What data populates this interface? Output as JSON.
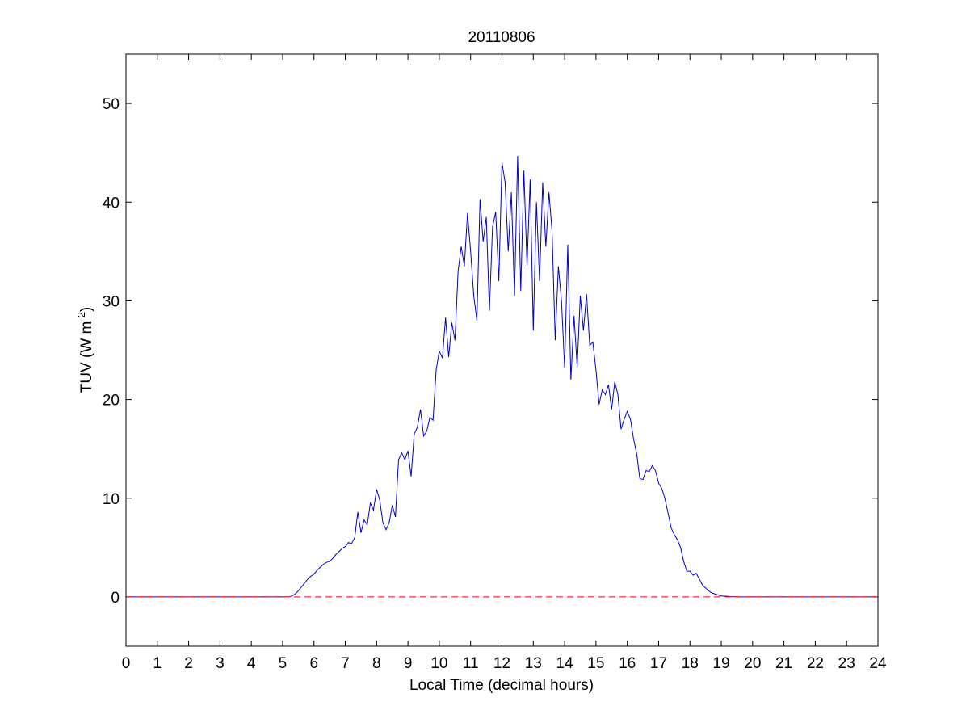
{
  "chart_data": {
    "type": "line",
    "title": "20110806",
    "xlabel": "Local Time (decimal hours)",
    "ylabel": [
      "TUV (W m",
      "-2",
      ")"
    ],
    "xlim": [
      0,
      24
    ],
    "xticks": [
      0,
      1,
      2,
      3,
      4,
      5,
      6,
      7,
      8,
      9,
      10,
      11,
      12,
      13,
      14,
      15,
      16,
      17,
      18,
      19,
      20,
      21,
      22,
      23,
      24
    ],
    "ylim": [
      -5,
      55
    ],
    "yticks": [
      0,
      10,
      20,
      30,
      40,
      50
    ],
    "grid": false,
    "reference_line": {
      "value": 0,
      "color": "#ff0000",
      "style": "dashed"
    },
    "x": [
      0,
      5.2,
      5.3,
      5.4,
      5.5,
      5.6,
      5.7,
      5.8,
      5.9,
      6.0,
      6.1,
      6.2,
      6.3,
      6.4,
      6.5,
      6.6,
      6.7,
      6.8,
      6.9,
      7.0,
      7.1,
      7.2,
      7.3,
      7.4,
      7.5,
      7.6,
      7.7,
      7.8,
      7.9,
      8.0,
      8.1,
      8.2,
      8.3,
      8.4,
      8.5,
      8.6,
      8.7,
      8.8,
      8.9,
      9.0,
      9.1,
      9.2,
      9.3,
      9.4,
      9.5,
      9.6,
      9.7,
      9.8,
      9.9,
      10.0,
      10.1,
      10.2,
      10.3,
      10.4,
      10.5,
      10.6,
      10.7,
      10.8,
      10.9,
      11.0,
      11.1,
      11.2,
      11.3,
      11.4,
      11.5,
      11.6,
      11.7,
      11.8,
      11.9,
      12.0,
      12.1,
      12.2,
      12.3,
      12.4,
      12.5,
      12.6,
      12.7,
      12.8,
      12.9,
      13.0,
      13.1,
      13.2,
      13.3,
      13.4,
      13.5,
      13.6,
      13.7,
      13.8,
      13.9,
      14.0,
      14.1,
      14.2,
      14.3,
      14.4,
      14.5,
      14.6,
      14.7,
      14.8,
      14.9,
      15.0,
      15.1,
      15.2,
      15.3,
      15.4,
      15.5,
      15.6,
      15.7,
      15.8,
      15.9,
      16.0,
      16.1,
      16.2,
      16.3,
      16.4,
      16.5,
      16.6,
      16.7,
      16.8,
      16.9,
      17.0,
      17.1,
      17.2,
      17.3,
      17.4,
      17.5,
      17.6,
      17.7,
      17.8,
      17.9,
      18.0,
      18.1,
      18.2,
      18.3,
      18.4,
      18.5,
      18.6,
      18.7,
      18.8,
      18.9,
      19.0,
      19.1,
      19.2,
      19.3,
      19.4,
      19.5,
      24
    ],
    "series": [
      {
        "color": "#0000cc",
        "values": [
          0,
          0,
          0.1,
          0.3,
          0.6,
          1.0,
          1.4,
          1.8,
          2.1,
          2.3,
          2.7,
          3.0,
          3.3,
          3.5,
          3.6,
          3.9,
          4.3,
          4.6,
          4.9,
          5.1,
          5.5,
          5.4,
          6.0,
          8.6,
          6.5,
          7.8,
          7.3,
          9.5,
          8.8,
          10.9,
          9.8,
          7.5,
          6.8,
          7.5,
          9.3,
          8.1,
          13.9,
          14.6,
          13.9,
          14.8,
          12.2,
          16.5,
          17.2,
          19.0,
          16.3,
          16.8,
          18.2,
          17.9,
          23.0,
          24.9,
          24.2,
          28.3,
          24.3,
          27.8,
          26.0,
          33.0,
          35.5,
          33.5,
          38.9,
          35.0,
          30.5,
          28.0,
          40.3,
          36.0,
          38.5,
          29.0,
          37.5,
          39.0,
          32.0,
          44.0,
          42.0,
          35.0,
          41.0,
          30.5,
          44.7,
          31.0,
          43.2,
          33.5,
          42.3,
          27.0,
          40.0,
          32.0,
          42.0,
          35.5,
          41.0,
          37.0,
          26.0,
          33.5,
          30.0,
          23.2,
          35.7,
          22.0,
          28.5,
          23.3,
          30.5,
          27.0,
          30.7,
          25.5,
          25.8,
          23.0,
          19.5,
          21.0,
          20.5,
          21.5,
          19.0,
          21.8,
          20.5,
          17.0,
          18.0,
          18.8,
          18.0,
          16.0,
          14.5,
          12.0,
          11.9,
          12.8,
          12.7,
          13.3,
          12.8,
          11.5,
          11.0,
          10.0,
          8.5,
          7.0,
          6.3,
          5.8,
          5.0,
          3.6,
          2.6,
          2.6,
          2.2,
          2.4,
          1.8,
          1.2,
          0.9,
          0.6,
          0.4,
          0.3,
          0.2,
          0.1,
          0.08,
          0.05,
          0.02,
          0.01,
          0,
          0
        ]
      }
    ]
  }
}
